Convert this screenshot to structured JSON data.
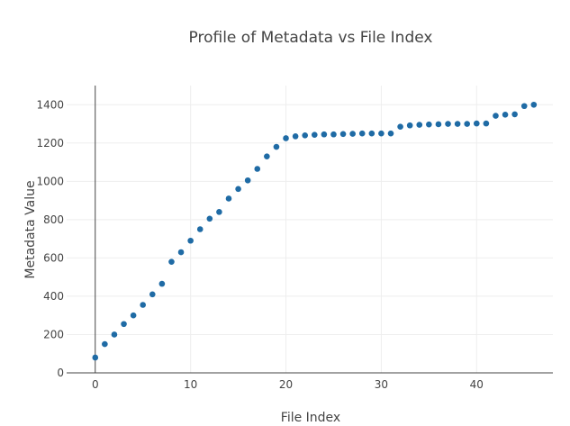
{
  "chart_data": {
    "type": "scatter",
    "title": "Profile of Metadata vs File Index",
    "xlabel": "File Index",
    "ylabel": "Metadata Value",
    "xlim": [
      -3,
      48
    ],
    "ylim": [
      0,
      1500
    ],
    "xticks": [
      0,
      10,
      20,
      30,
      40
    ],
    "yticks": [
      0,
      200,
      400,
      600,
      800,
      1000,
      1200,
      1400
    ],
    "grid": true,
    "marker_color": "#1f6ba5",
    "x": [
      0,
      1,
      2,
      3,
      4,
      5,
      6,
      7,
      8,
      9,
      10,
      11,
      12,
      13,
      14,
      15,
      16,
      17,
      18,
      19,
      20,
      21,
      22,
      23,
      24,
      25,
      26,
      27,
      28,
      29,
      30,
      31,
      32,
      33,
      34,
      35,
      36,
      37,
      38,
      39,
      40,
      41,
      42,
      43,
      44,
      45,
      46
    ],
    "y": [
      80,
      150,
      200,
      255,
      300,
      355,
      410,
      465,
      580,
      630,
      690,
      750,
      805,
      840,
      910,
      960,
      1005,
      1065,
      1130,
      1180,
      1225,
      1235,
      1240,
      1243,
      1245,
      1245,
      1247,
      1248,
      1250,
      1250,
      1250,
      1250,
      1285,
      1292,
      1295,
      1297,
      1298,
      1300,
      1300,
      1300,
      1302,
      1302,
      1342,
      1348,
      1350,
      1393,
      1400
    ]
  }
}
